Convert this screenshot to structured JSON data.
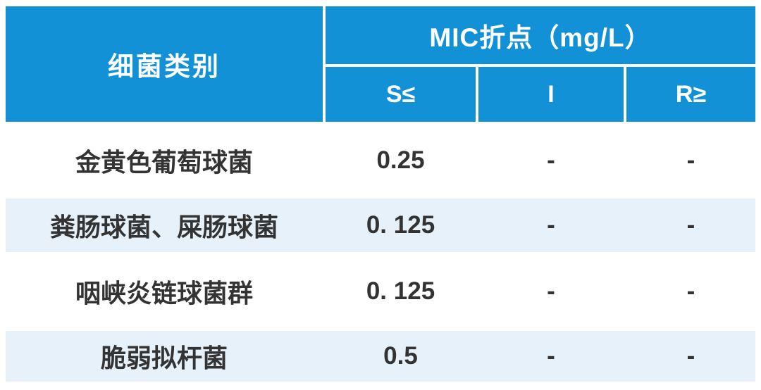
{
  "chart_data": {
    "type": "table",
    "title": "MIC折点（mg/L）",
    "corner_header": "细菌类别",
    "group_header": "MIC折点（mg/L）",
    "sub_headers": [
      "S≤",
      "I",
      "R≥"
    ],
    "rows": [
      [
        "金黄色葡萄球菌",
        "0.25",
        "-",
        "-"
      ],
      [
        "粪肠球菌、屎肠球菌",
        "0. 125",
        "-",
        "-"
      ],
      [
        "咽峡炎链球菌群",
        "0. 125",
        "-",
        "-"
      ],
      [
        "脆弱拟杆菌",
        "0.5",
        "-",
        "-"
      ]
    ],
    "layout_hints": {
      "striped_rows": [
        2,
        4
      ],
      "header_rows": 2,
      "vertical_separators_in_body": false
    }
  },
  "colors": {
    "header_bg": "#1291d6",
    "header_text": "#ffffff",
    "stripe_bg": "#e6f1f9",
    "body_text": "#333333",
    "page_bg": "#ffffff"
  }
}
